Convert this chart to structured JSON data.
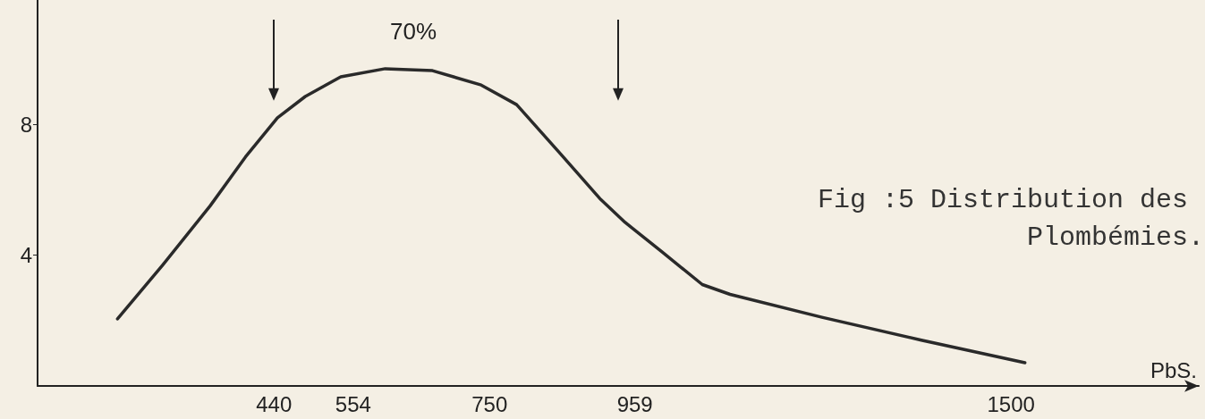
{
  "chart_data": {
    "type": "line",
    "title": "Fig :5 Distribution des Plombémies.",
    "xlabel": "PbS.",
    "annotations": [
      "70%"
    ],
    "ref_lines": [
      {
        "axis": "x",
        "value": 440
      },
      {
        "axis": "x",
        "value": 935
      }
    ],
    "x": [
      215,
      280,
      348,
      399,
      445,
      485,
      536,
      600,
      668,
      738,
      789,
      852,
      910,
      945,
      998,
      1056,
      1096,
      1228,
      1371,
      1520
    ],
    "series": [
      {
        "color": "#2a2a2a",
        "values": [
          2.05,
          3.7,
          5.5,
          7.0,
          8.2,
          8.85,
          9.45,
          9.7,
          9.64,
          9.2,
          8.6,
          7.1,
          5.7,
          5.0,
          4.1,
          3.1,
          2.8,
          2.1,
          1.4,
          0.71
        ]
      }
    ],
    "xlim": [
      100,
      1770
    ],
    "xticks": [
      440,
      554,
      750,
      959,
      1500
    ],
    "ylim": [
      0,
      11.8
    ],
    "yticks": [
      4,
      8
    ],
    "grid": false,
    "marker": "none",
    "line_style": "solid"
  }
}
